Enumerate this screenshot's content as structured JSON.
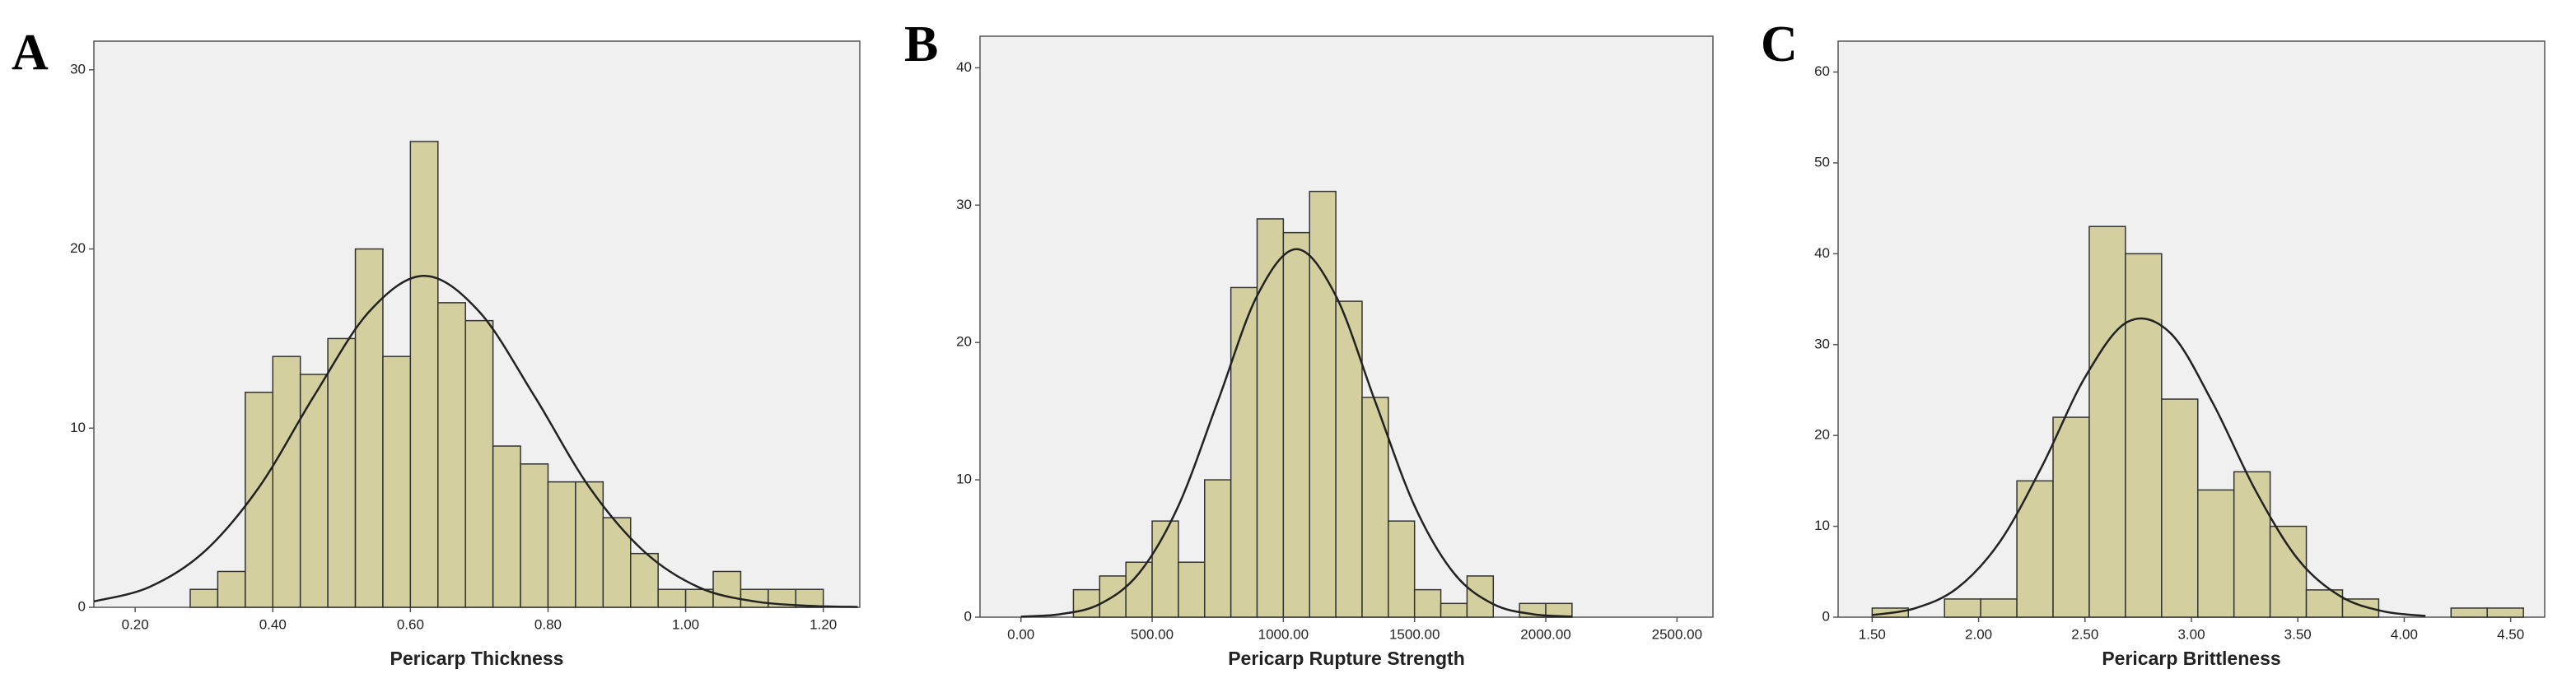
{
  "chart_data": [
    {
      "type": "histogram",
      "panel_label": "A",
      "xlabel": "Pericarp Thickness",
      "color": "#d4cf9e",
      "curve_color": "#222222",
      "bins": [
        0.28,
        0.32,
        0.36,
        0.4,
        0.44,
        0.48,
        0.52,
        0.56,
        0.6,
        0.64,
        0.68,
        0.72,
        0.76,
        0.8,
        0.84,
        0.88,
        0.92,
        0.96,
        1.0,
        1.04,
        1.08,
        1.12,
        1.16,
        1.2
      ],
      "values": [
        1,
        2,
        12,
        14,
        13,
        15,
        20,
        14,
        26,
        17,
        16,
        9,
        8,
        7,
        7,
        5,
        3,
        1,
        1,
        2,
        1,
        1,
        1
      ],
      "curve": {
        "x": [
          0.14,
          0.22,
          0.3,
          0.38,
          0.46,
          0.54,
          0.62,
          0.7,
          0.78,
          0.86,
          0.94,
          1.02,
          1.1,
          1.18,
          1.25
        ],
        "values": [
          0.33,
          1.12,
          3.09,
          6.7,
          11.8,
          16.5,
          18.5,
          16.5,
          11.8,
          6.7,
          3.1,
          1.1,
          0.33,
          0.08,
          0.02
        ]
      },
      "xlim": [
        0.14,
        1.253
      ],
      "ylim": [
        0,
        31.6
      ],
      "xticks": [
        {
          "value": 0.2,
          "label": "0.20"
        },
        {
          "value": 0.4,
          "label": "0.40"
        },
        {
          "value": 0.6,
          "label": "0.60"
        },
        {
          "value": 0.8,
          "label": "0.80"
        },
        {
          "value": 1.0,
          "label": "1.00"
        },
        {
          "value": 1.2,
          "label": "1.20"
        }
      ],
      "yticks": [
        0,
        10,
        20,
        30
      ]
    },
    {
      "type": "histogram",
      "panel_label": "B",
      "xlabel": "Pericarp Rupture Strength",
      "color": "#d4cf9e",
      "curve_color": "#222222",
      "bins": [
        200,
        300,
        400,
        500,
        600,
        700,
        800,
        900,
        1000,
        1100,
        1200,
        1300,
        1400,
        1500,
        1600,
        1700,
        1800,
        1900,
        2000,
        2100
      ],
      "values": [
        2,
        3,
        4,
        7,
        4,
        10,
        24,
        29,
        28,
        31,
        23,
        16,
        7,
        2,
        1,
        3,
        0,
        1,
        1
      ],
      "curve": {
        "x": [
          0,
          150,
          300,
          450,
          600,
          750,
          900,
          1050,
          1200,
          1350,
          1500,
          1650,
          1800,
          1950,
          2100
        ],
        "values": [
          0.04,
          0.22,
          0.95,
          3.2,
          8.1,
          15.7,
          23.4,
          26.8,
          23.4,
          15.7,
          8.1,
          3.2,
          0.95,
          0.22,
          0.04
        ]
      },
      "xlim": [
        -156,
        2637
      ],
      "ylim": [
        0,
        42.3
      ],
      "xticks": [
        {
          "value": 0,
          "label": "0.00"
        },
        {
          "value": 500,
          "label": "500.00"
        },
        {
          "value": 1000,
          "label": "1000.00"
        },
        {
          "value": 1500,
          "label": "1500.00"
        },
        {
          "value": 2000,
          "label": "2000.00"
        },
        {
          "value": 2500,
          "label": "2500.00"
        }
      ],
      "yticks": [
        0,
        10,
        20,
        30,
        40
      ]
    },
    {
      "type": "histogram",
      "panel_label": "C",
      "xlabel": "Pericarp Brittleness",
      "color": "#d4cf9e",
      "curve_color": "#222222",
      "bins": [
        1.5,
        1.67,
        1.84,
        2.01,
        2.18,
        2.35,
        2.52,
        2.69,
        2.86,
        3.03,
        3.2,
        3.37,
        3.54,
        3.71,
        3.88,
        4.05,
        4.22,
        4.39,
        4.56
      ],
      "values": [
        1,
        0,
        2,
        2,
        15,
        22,
        43,
        40,
        24,
        14,
        16,
        10,
        3,
        2,
        0,
        0,
        1,
        1
      ],
      "curve": {
        "x": [
          1.5,
          1.7,
          1.9,
          2.1,
          2.3,
          2.5,
          2.7,
          2.9,
          3.1,
          3.3,
          3.5,
          3.7,
          3.9,
          4.1
        ],
        "values": [
          0.23,
          0.97,
          3.2,
          8.3,
          16.7,
          26.4,
          32.5,
          31.3,
          23.6,
          14.0,
          6.4,
          2.3,
          0.65,
          0.14
        ]
      },
      "xlim": [
        1.34,
        4.66
      ],
      "ylim": [
        0,
        63.4
      ],
      "xticks": [
        {
          "value": 1.5,
          "label": "1.50"
        },
        {
          "value": 2.0,
          "label": "2.00"
        },
        {
          "value": 2.5,
          "label": "2.50"
        },
        {
          "value": 3.0,
          "label": "3.00"
        },
        {
          "value": 3.5,
          "label": "3.50"
        },
        {
          "value": 4.0,
          "label": "4.00"
        },
        {
          "value": 4.5,
          "label": "4.50"
        }
      ],
      "yticks": [
        0,
        10,
        20,
        30,
        40,
        50,
        60
      ]
    }
  ]
}
